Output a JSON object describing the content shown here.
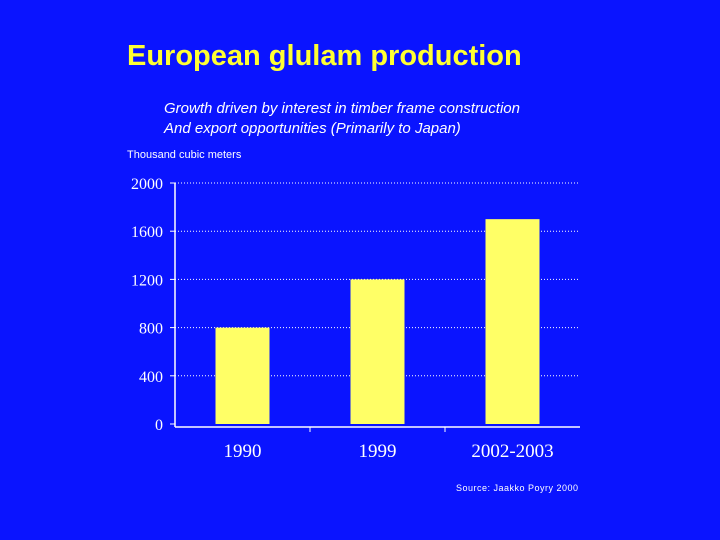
{
  "slide": {
    "title": "European glulam production",
    "subtitle_line1": "Growth driven by interest in timber frame construction",
    "subtitle_line2": "And export opportunities  (Primarily to Japan)",
    "source": "Source: Jaakko Poyry 2000"
  },
  "chart_data": {
    "type": "bar",
    "title": "European glulam production",
    "ylabel": "Thousand cubic meters",
    "xlabel": "",
    "categories": [
      "1990",
      "1999",
      "2002-2003"
    ],
    "values": [
      800,
      1200,
      1700
    ],
    "ylim": [
      0,
      2000
    ],
    "yticks": [
      0,
      400,
      800,
      1200,
      1600,
      2000
    ],
    "grid": true,
    "colors": {
      "bar": "#ffff66",
      "axis": "#ffffff",
      "grid": "#ffffff",
      "background": "#0a14ff"
    }
  }
}
